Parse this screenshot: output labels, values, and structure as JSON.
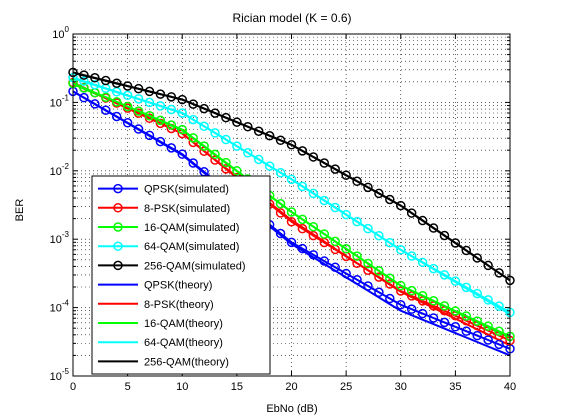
{
  "chart_data": {
    "type": "line",
    "title": "Rician model (K = 0.6)",
    "xlabel": "EbNo (dB)",
    "ylabel": "BER",
    "xlim": [
      0,
      40
    ],
    "ylim": [
      1e-05,
      1
    ],
    "yscale": "log",
    "grid": true,
    "legend_position": "bottom-left",
    "x": [
      0,
      1,
      2,
      3,
      4,
      5,
      6,
      7,
      8,
      9,
      10,
      11,
      12,
      13,
      14,
      15,
      16,
      17,
      18,
      19,
      20,
      21,
      22,
      23,
      24,
      25,
      26,
      27,
      28,
      29,
      30,
      31,
      32,
      33,
      34,
      35,
      36,
      37,
      38,
      39,
      40
    ],
    "xticks": [
      0,
      5,
      10,
      15,
      20,
      25,
      30,
      35,
      40
    ],
    "yticks": [
      "10^0",
      "10^-1",
      "10^-2",
      "10^-3",
      "10^-4",
      "10^-5"
    ],
    "series": [
      {
        "name": "QPSK(simulated)",
        "color": "#0000ff",
        "marker": "circle",
        "ctrl": [
          [
            0,
            0.145
          ],
          [
            10,
            0.0175
          ],
          [
            20,
            0.0009
          ],
          [
            30,
            0.00011
          ],
          [
            40,
            2.5e-05
          ]
        ]
      },
      {
        "name": "8-PSK(simulated)",
        "color": "#ff0000",
        "marker": "circle",
        "ctrl": [
          [
            0,
            0.195
          ],
          [
            10,
            0.035
          ],
          [
            20,
            0.0018
          ],
          [
            30,
            0.000175
          ],
          [
            40,
            3.3e-05
          ]
        ]
      },
      {
        "name": "16-QAM(simulated)",
        "color": "#00ff00",
        "marker": "circle",
        "ctrl": [
          [
            0,
            0.19
          ],
          [
            10,
            0.04
          ],
          [
            20,
            0.0025
          ],
          [
            30,
            0.00021
          ],
          [
            40,
            3.8e-05
          ]
        ]
      },
      {
        "name": "64-QAM(simulated)",
        "color": "#00ffff",
        "marker": "circle",
        "ctrl": [
          [
            0,
            0.23
          ],
          [
            10,
            0.07
          ],
          [
            20,
            0.0075
          ],
          [
            30,
            0.0007
          ],
          [
            40,
            8.5e-05
          ]
        ]
      },
      {
        "name": "256-QAM(simulated)",
        "color": "#000000",
        "marker": "circle",
        "ctrl": [
          [
            0,
            0.275
          ],
          [
            10,
            0.11
          ],
          [
            20,
            0.024
          ],
          [
            30,
            0.0031
          ],
          [
            40,
            0.00025
          ]
        ]
      },
      {
        "name": "QPSK(theory)",
        "color": "#0000ff",
        "marker": "none",
        "ctrl": [
          [
            0,
            0.145
          ],
          [
            10,
            0.017
          ],
          [
            20,
            0.00085
          ],
          [
            30,
            9e-05
          ],
          [
            40,
            2e-05
          ]
        ]
      },
      {
        "name": "8-PSK(theory)",
        "color": "#ff0000",
        "marker": "none",
        "ctrl": [
          [
            0,
            0.19
          ],
          [
            10,
            0.035
          ],
          [
            20,
            0.0019
          ],
          [
            30,
            0.00017
          ],
          [
            40,
            2.8e-05
          ]
        ]
      },
      {
        "name": "16-QAM(theory)",
        "color": "#00ff00",
        "marker": "none",
        "ctrl": [
          [
            0,
            0.185
          ],
          [
            10,
            0.039
          ],
          [
            20,
            0.0025
          ],
          [
            30,
            0.00021
          ],
          [
            40,
            3.6e-05
          ]
        ]
      },
      {
        "name": "64-QAM(theory)",
        "color": "#00ffff",
        "marker": "none",
        "ctrl": [
          [
            0,
            0.225
          ],
          [
            10,
            0.07
          ],
          [
            20,
            0.0075
          ],
          [
            30,
            0.0007
          ],
          [
            40,
            8e-05
          ]
        ]
      },
      {
        "name": "256-QAM(theory)",
        "color": "#000000",
        "marker": "none",
        "ctrl": [
          [
            0,
            0.27
          ],
          [
            10,
            0.11
          ],
          [
            20,
            0.024
          ],
          [
            30,
            0.0031
          ],
          [
            40,
            0.00025
          ]
        ]
      }
    ]
  }
}
